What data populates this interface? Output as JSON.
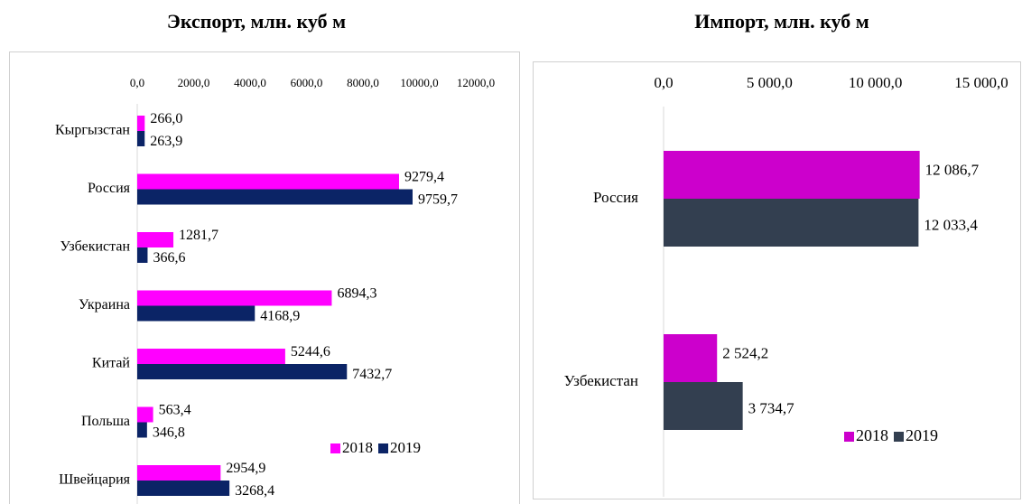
{
  "chart_data": [
    {
      "type": "bar",
      "title": "Экспорт, млн. куб м",
      "categories": [
        "Кыргызстан",
        "Россия",
        "Узбекистан",
        "Украина",
        "Китай",
        "Польша",
        "Швейцария"
      ],
      "series": [
        {
          "name": "2018",
          "color": "#ff00ff",
          "values": [
            266.0,
            9279.4,
            1281.7,
            6894.3,
            5244.6,
            563.4,
            2954.9
          ],
          "value_labels": [
            "266,0",
            "9279,4",
            "1281,7",
            "6894,3",
            "5244,6",
            "563,4",
            "2954,9"
          ]
        },
        {
          "name": "2019",
          "color": "#0b2466",
          "values": [
            263.9,
            9759.7,
            366.6,
            4168.9,
            7432.7,
            346.8,
            3268.4
          ],
          "value_labels": [
            "263,9",
            "9759,7",
            "366,6",
            "4168,9",
            "7432,7",
            "346,8",
            "3268,4"
          ]
        }
      ],
      "xlim": [
        0,
        12000
      ],
      "xticks": [
        {
          "value": 0,
          "label": "0,0"
        },
        {
          "value": 2000,
          "label": "2000,0"
        },
        {
          "value": 4000,
          "label": "4000,0"
        },
        {
          "value": 6000,
          "label": "6000,0"
        },
        {
          "value": 8000,
          "label": "8000,0"
        },
        {
          "value": 10000,
          "label": "10000,0"
        },
        {
          "value": 12000,
          "label": "12000,0"
        }
      ]
    },
    {
      "type": "bar",
      "title": "Импорт, млн. куб м",
      "categories": [
        "Россия",
        "Узбекистан"
      ],
      "series": [
        {
          "name": "2018",
          "color": "#cc00cc",
          "values": [
            12086.7,
            2524.2
          ],
          "value_labels": [
            "12 086,7",
            "2 524,2"
          ]
        },
        {
          "name": "2019",
          "color": "#333f50",
          "values": [
            12033.4,
            3734.7
          ],
          "value_labels": [
            "12 033,4",
            "3 734,7"
          ]
        }
      ],
      "xlim": [
        0,
        15000
      ],
      "xticks": [
        {
          "value": 0,
          "label": "0,0"
        },
        {
          "value": 5000,
          "label": "5 000,0"
        },
        {
          "value": 10000,
          "label": "10 000,0"
        },
        {
          "value": 15000,
          "label": "15 000,0"
        }
      ]
    }
  ]
}
